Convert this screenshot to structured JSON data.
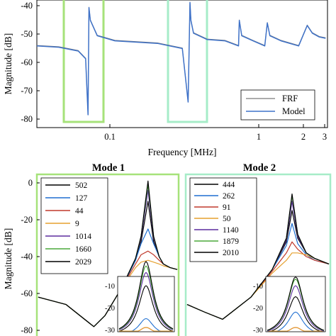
{
  "charts": {
    "top": {
      "ylabel": "Magnitude [dB]",
      "xlabel": "Frequency [MHz]",
      "yticks": [
        "-40",
        "-50",
        "-60",
        "-70",
        "-80"
      ],
      "xticks": [
        "0.1",
        "1",
        "2",
        "3"
      ],
      "legend": [
        "FRF",
        "Model"
      ]
    },
    "bottom": {
      "ylabel": "Magnitude [dB]",
      "yticks": [
        "0",
        "-20",
        "-40",
        "-60",
        "-80"
      ],
      "mode1": {
        "title": "Mode 1",
        "legend": [
          "502",
          "127",
          "44",
          "9",
          "1014",
          "1660",
          "2029"
        ]
      },
      "mode2": {
        "title": "Mode 2",
        "legend": [
          "444",
          "262",
          "91",
          "50",
          "1140",
          "1879",
          "2010"
        ]
      },
      "inset_yticks": [
        "-10",
        "-20",
        "-30"
      ]
    }
  },
  "chart_data": [
    {
      "type": "line",
      "title": "",
      "xlabel": "Frequency [MHz]",
      "ylabel": "Magnitude [dB]",
      "xscale": "log",
      "xlim": [
        0.028,
        3.2
      ],
      "ylim": [
        -85,
        -35
      ],
      "series": [
        {
          "name": "FRF",
          "color": "#7a7a7a",
          "x": [
            0.028,
            0.04,
            0.055,
            0.062,
            0.0645,
            0.0655,
            0.067,
            0.075,
            0.1,
            0.2,
            0.3,
            0.33,
            0.34,
            0.345,
            0.36,
            0.45,
            0.6,
            0.75,
            0.76,
            0.79,
            0.95,
            1.15,
            1.2,
            1.25,
            1.5,
            2.0,
            2.3,
            2.5,
            2.8,
            3.1
          ],
          "y": [
            -53,
            -53.5,
            -55,
            -58,
            -80,
            -38,
            -43,
            -49,
            -51,
            -52,
            -54,
            -75,
            -36,
            -43,
            -48,
            -50.5,
            -51,
            -53,
            -43,
            -49,
            -51,
            -53,
            -44,
            -49,
            -51,
            -53,
            -45,
            -48,
            -49.5,
            -50
          ]
        },
        {
          "name": "Model",
          "color": "#3f72c8",
          "x": [
            0.028,
            0.04,
            0.055,
            0.062,
            0.0645,
            0.0655,
            0.067,
            0.075,
            0.1,
            0.2,
            0.3,
            0.33,
            0.34,
            0.345,
            0.36,
            0.45,
            0.6,
            0.75,
            0.76,
            0.79,
            0.95,
            1.15,
            1.2,
            1.25,
            1.5,
            2.0,
            2.3,
            2.5,
            2.8,
            3.1
          ],
          "y": [
            -53,
            -53.5,
            -55,
            -58,
            -80,
            -38,
            -43,
            -49,
            -51,
            -52,
            -54,
            -75,
            -36,
            -43,
            -48,
            -50.5,
            -51,
            -53,
            -43,
            -49,
            -51,
            -53,
            -44,
            -49,
            -51,
            -53,
            -45,
            -48,
            -49.5,
            -50
          ]
        }
      ]
    },
    {
      "type": "line",
      "title": "Mode 1",
      "ylabel": "Magnitude [dB]",
      "ylim": [
        -82,
        3
      ],
      "xlim": [
        0,
        1
      ],
      "series": [
        {
          "name": "502",
          "color": "#000000",
          "x": [
            0,
            0.2,
            0.4,
            0.48,
            0.6,
            0.7,
            0.74,
            0.79,
            0.83,
            0.87,
            0.9,
            0.95,
            1.0
          ],
          "y": [
            -62,
            -66,
            -78,
            -72,
            -57,
            -42,
            -32,
            -10,
            -32,
            -40,
            -44,
            -46,
            -47
          ]
        },
        {
          "name": "127",
          "color": "#1f6fd1",
          "x": [
            0,
            0.2,
            0.4,
            0.48,
            0.6,
            0.7,
            0.74,
            0.79,
            0.83,
            0.87,
            0.9,
            0.95,
            1.0
          ],
          "y": [
            -62,
            -66,
            -78,
            -72,
            -57,
            -42,
            -33,
            -25,
            -33,
            -40,
            -44,
            -46,
            -47
          ]
        },
        {
          "name": "44",
          "color": "#c0392b",
          "x": [
            0,
            0.2,
            0.4,
            0.48,
            0.6,
            0.7,
            0.74,
            0.79,
            0.83,
            0.87,
            0.9,
            0.95,
            1.0
          ],
          "y": [
            -62,
            -66,
            -78,
            -72,
            -57,
            -44,
            -39,
            -37,
            -39,
            -42,
            -44,
            -46,
            -47
          ]
        },
        {
          "name": "9",
          "color": "#e6a02e",
          "x": [
            0,
            0.2,
            0.4,
            0.48,
            0.6,
            0.7,
            0.74,
            0.79,
            0.83,
            0.87,
            0.9,
            0.95,
            1.0
          ],
          "y": [
            -62,
            -66,
            -78,
            -72,
            -57,
            -46,
            -43,
            -42,
            -43,
            -44,
            -45,
            -46,
            -47
          ]
        },
        {
          "name": "1014",
          "color": "#5b2c9e",
          "x": [
            0,
            0.2,
            0.4,
            0.48,
            0.6,
            0.7,
            0.74,
            0.79,
            0.83,
            0.87,
            0.9,
            0.95,
            1.0
          ],
          "y": [
            -62,
            -66,
            -78,
            -72,
            -57,
            -41,
            -30,
            -4,
            -30,
            -40,
            -44,
            -46,
            -47
          ]
        },
        {
          "name": "1660",
          "color": "#4aa83a",
          "x": [
            0,
            0.2,
            0.4,
            0.48,
            0.6,
            0.7,
            0.74,
            0.79,
            0.83,
            0.87,
            0.9,
            0.95,
            1.0
          ],
          "y": [
            -62,
            -66,
            -78,
            -72,
            -57,
            -41,
            -29,
            -1,
            -29,
            -40,
            -44,
            -46,
            -47
          ]
        },
        {
          "name": "2029",
          "color": "#000000",
          "x": [
            0,
            0.2,
            0.4,
            0.48,
            0.6,
            0.7,
            0.74,
            0.79,
            0.83,
            0.87,
            0.9,
            0.95,
            1.0
          ],
          "y": [
            -62,
            -66,
            -78,
            -72,
            -57,
            -41,
            -29,
            1,
            -29,
            -40,
            -44,
            -46,
            -47
          ]
        }
      ]
    },
    {
      "type": "line",
      "title": "Mode 2",
      "ylim": [
        -82,
        3
      ],
      "xlim": [
        0,
        1
      ],
      "series": [
        {
          "name": "444",
          "color": "#000000",
          "x": [
            0,
            0.12,
            0.25,
            0.3,
            0.45,
            0.6,
            0.7,
            0.74,
            0.78,
            0.84,
            0.9,
            1.0
          ],
          "y": [
            -66,
            -70,
            -74,
            -71,
            -62,
            -47,
            -32,
            -15,
            -30,
            -38,
            -41,
            -44
          ]
        },
        {
          "name": "262",
          "color": "#1f6fd1",
          "x": [
            0,
            0.12,
            0.25,
            0.3,
            0.45,
            0.6,
            0.7,
            0.74,
            0.78,
            0.84,
            0.9,
            1.0
          ],
          "y": [
            -66,
            -70,
            -74,
            -71,
            -62,
            -47,
            -34,
            -22,
            -33,
            -39,
            -42,
            -44
          ]
        },
        {
          "name": "91",
          "color": "#c0392b",
          "x": [
            0,
            0.12,
            0.25,
            0.3,
            0.45,
            0.6,
            0.7,
            0.74,
            0.78,
            0.84,
            0.9,
            1.0
          ],
          "y": [
            -66,
            -70,
            -74,
            -71,
            -62,
            -48,
            -38,
            -32,
            -36,
            -40,
            -42,
            -44
          ]
        },
        {
          "name": "50",
          "color": "#e6a02e",
          "x": [
            0,
            0.12,
            0.25,
            0.3,
            0.45,
            0.6,
            0.7,
            0.74,
            0.78,
            0.84,
            0.9,
            1.0
          ],
          "y": [
            -66,
            -70,
            -74,
            -71,
            -62,
            -49,
            -42,
            -38,
            -38,
            -39,
            -41,
            -44
          ]
        },
        {
          "name": "1140",
          "color": "#5b2c9e",
          "x": [
            0,
            0.12,
            0.25,
            0.3,
            0.45,
            0.6,
            0.7,
            0.74,
            0.78,
            0.84,
            0.9,
            1.0
          ],
          "y": [
            -66,
            -70,
            -74,
            -71,
            -62,
            -47,
            -31,
            -10,
            -29,
            -38,
            -41,
            -44
          ]
        },
        {
          "name": "1879",
          "color": "#4aa83a",
          "x": [
            0,
            0.12,
            0.25,
            0.3,
            0.45,
            0.6,
            0.7,
            0.74,
            0.78,
            0.84,
            0.9,
            1.0
          ],
          "y": [
            -66,
            -70,
            -74,
            -71,
            -62,
            -47,
            -30,
            -7,
            -28,
            -38,
            -41,
            -44
          ]
        },
        {
          "name": "2010",
          "color": "#000000",
          "x": [
            0,
            0.12,
            0.25,
            0.3,
            0.45,
            0.6,
            0.7,
            0.74,
            0.78,
            0.84,
            0.9,
            1.0
          ],
          "y": [
            -66,
            -70,
            -74,
            -71,
            -62,
            -47,
            -30,
            -6,
            -28,
            -38,
            -41,
            -44
          ]
        }
      ]
    }
  ]
}
